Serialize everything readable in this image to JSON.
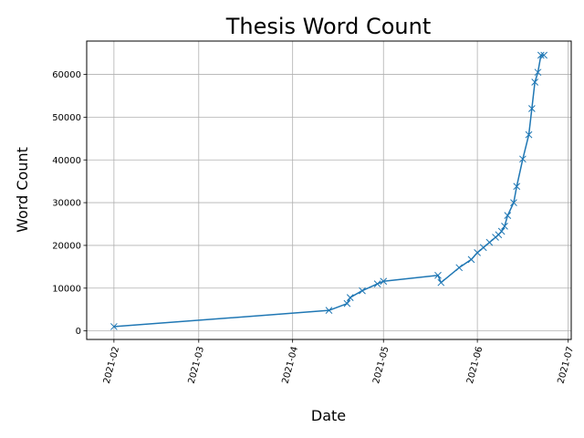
{
  "chart_data": {
    "type": "line",
    "title": "Thesis Word Count",
    "xlabel": "Date",
    "ylabel": "Word Count",
    "grid": true,
    "marker": "x",
    "series_color": "#1f77b4",
    "x_ticks": [
      "2021-02",
      "2021-03",
      "2021-04",
      "2021-05",
      "2021-06",
      "2021-07"
    ],
    "y_ticks": [
      0,
      10000,
      20000,
      30000,
      40000,
      50000,
      60000
    ],
    "xlim": [
      "2021-01-23",
      "2021-07-02"
    ],
    "ylim": [
      -2000,
      67800
    ],
    "series": [
      {
        "x": [
          "2021-02-01",
          "2021-04-13",
          "2021-04-19",
          "2021-04-20",
          "2021-04-24",
          "2021-04-29",
          "2021-05-01",
          "2021-05-19",
          "2021-05-20",
          "2021-05-26",
          "2021-05-30",
          "2021-06-01",
          "2021-06-03",
          "2021-06-05",
          "2021-06-07",
          "2021-06-08",
          "2021-06-09",
          "2021-06-10",
          "2021-06-11",
          "2021-06-13",
          "2021-06-14",
          "2021-06-16",
          "2021-06-18",
          "2021-06-19",
          "2021-06-20",
          "2021-06-21",
          "2021-06-22",
          "2021-06-23"
        ],
        "y": [
          1000,
          4800,
          6400,
          7800,
          9400,
          11000,
          11600,
          13000,
          11300,
          14800,
          16700,
          18300,
          19500,
          20700,
          21900,
          22500,
          23300,
          24500,
          27000,
          30000,
          33800,
          40200,
          45900,
          52000,
          58200,
          60500,
          64500,
          64500
        ]
      }
    ]
  }
}
